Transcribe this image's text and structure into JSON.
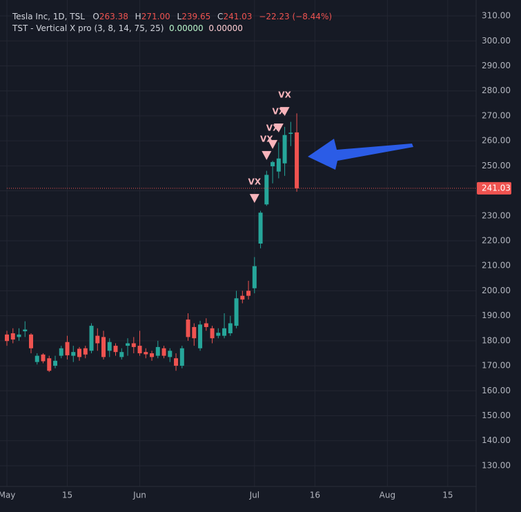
{
  "chart_data": {
    "type": "candlestick",
    "title": "Tesla Inc, 1D, TSL",
    "ohlc_legend": [
      {
        "key": "O",
        "value": 263.38,
        "label": "263.38"
      },
      {
        "key": "H",
        "value": 271.0,
        "label": "271.00"
      },
      {
        "key": "L",
        "value": 239.65,
        "label": "239.65"
      },
      {
        "key": "C",
        "value": 241.03,
        "label": "241.03"
      }
    ],
    "change": "−22.23 (−8.44%)",
    "indicator": {
      "name": "TST - Vertical X pro (3, 8, 14, 75, 25)",
      "values": [
        {
          "value": 0,
          "label": "0.00000",
          "color": "#b9f6ca"
        },
        {
          "value": 0,
          "label": "0.00000",
          "color": "#ffcdd2"
        }
      ]
    },
    "up_color": "#26a69a",
    "down_color": "#ef5350",
    "open": [
      182.5,
      183,
      181.5,
      183.8,
      182.5,
      171.5,
      174.5,
      173,
      170,
      174,
      179.5,
      174,
      176.8,
      177,
      176,
      182,
      181.5,
      176,
      178,
      173.5,
      178,
      179,
      178,
      175.5,
      175,
      174,
      177,
      173.5,
      173,
      170,
      188.5,
      185.5,
      177,
      187,
      185,
      182,
      182,
      183,
      186,
      198,
      200,
      201.02,
      218.89,
      234.56,
      249.81,
      247.71,
      251,
      262.8,
      263.38
    ],
    "high": [
      184,
      185,
      185,
      187.8,
      183,
      175,
      175,
      174,
      174,
      178,
      182,
      178,
      177.5,
      178,
      187,
      185,
      184,
      181,
      179,
      177,
      181,
      181.5,
      184,
      177,
      176,
      180,
      178,
      177,
      175,
      178,
      191,
      187,
      188,
      189,
      186,
      185,
      191,
      190,
      200,
      200,
      204,
      213.5,
      232,
      248,
      252,
      259.4,
      265.6,
      267.6,
      271.0
    ],
    "low": [
      178,
      179,
      180,
      181.5,
      175,
      170.5,
      171,
      167.5,
      169,
      173,
      172.5,
      171.5,
      172,
      173,
      175,
      176,
      172.5,
      173.5,
      174,
      172.5,
      174,
      175,
      174,
      173,
      172,
      173,
      173,
      171.5,
      168,
      169,
      180,
      178,
      176,
      184,
      179,
      181,
      181,
      182,
      185,
      195,
      196.5,
      199,
      217,
      234,
      243,
      245,
      246,
      257.9,
      239.65
    ],
    "close": [
      179.9,
      180.5,
      182.5,
      184.5,
      177,
      174,
      171.8,
      168,
      172,
      177,
      174.2,
      175.5,
      173.5,
      174.5,
      186,
      179,
      173.5,
      179.5,
      175.5,
      175.5,
      179,
      177.5,
      175,
      174.6,
      173.5,
      177.5,
      174,
      176,
      170,
      177,
      181.5,
      181,
      186.5,
      185.5,
      181,
      183.2,
      185,
      187,
      197,
      196.5,
      198,
      209.86,
      231.26,
      246.39,
      251.52,
      252.94,
      262.33,
      263.26,
      241.03
    ],
    "xlim": [
      0,
      77.7
    ],
    "xticks": [
      {
        "value": 0,
        "label": "May"
      },
      {
        "value": 10,
        "label": "15"
      },
      {
        "value": 22,
        "label": "Jun"
      },
      {
        "value": 41,
        "label": "Jul"
      },
      {
        "value": 51,
        "label": "16"
      },
      {
        "value": 63,
        "label": "Aug"
      },
      {
        "value": 73,
        "label": "15"
      }
    ],
    "ylim": [
      121.7,
      313.6
    ],
    "yticks": [
      {
        "value": 130,
        "label": "130.00"
      },
      {
        "value": 140,
        "label": "140.00"
      },
      {
        "value": 150,
        "label": "150.00"
      },
      {
        "value": 160,
        "label": "160.00"
      },
      {
        "value": 170,
        "label": "170.00"
      },
      {
        "value": 180,
        "label": "180.00"
      },
      {
        "value": 190,
        "label": "190.00"
      },
      {
        "value": 200,
        "label": "200.00"
      },
      {
        "value": 210,
        "label": "210.00"
      },
      {
        "value": 220,
        "label": "220.00"
      },
      {
        "value": 230,
        "label": "230.00"
      },
      {
        "value": 240,
        "label": "240.00"
      },
      {
        "value": 250,
        "label": "250.00"
      },
      {
        "value": 260,
        "label": "260.00"
      },
      {
        "value": 270,
        "label": "270.00"
      },
      {
        "value": 280,
        "label": "280.00"
      },
      {
        "value": 290,
        "label": "290.00"
      },
      {
        "value": 300,
        "label": "300.00"
      },
      {
        "value": 310,
        "label": "310.00"
      }
    ],
    "signals": [
      {
        "index": 41,
        "price": 236.8,
        "label": "VX"
      },
      {
        "index": 43,
        "price": 254,
        "label": "VX"
      },
      {
        "index": 44,
        "price": 258.4,
        "label": "VX"
      },
      {
        "index": 45,
        "price": 265,
        "label": "VX"
      },
      {
        "index": 46,
        "price": 271.6,
        "label": "VX"
      }
    ],
    "signal_color": "#f8b4bb",
    "last_price": {
      "value": 241.03,
      "label": "241.03"
    },
    "grid": true
  }
}
